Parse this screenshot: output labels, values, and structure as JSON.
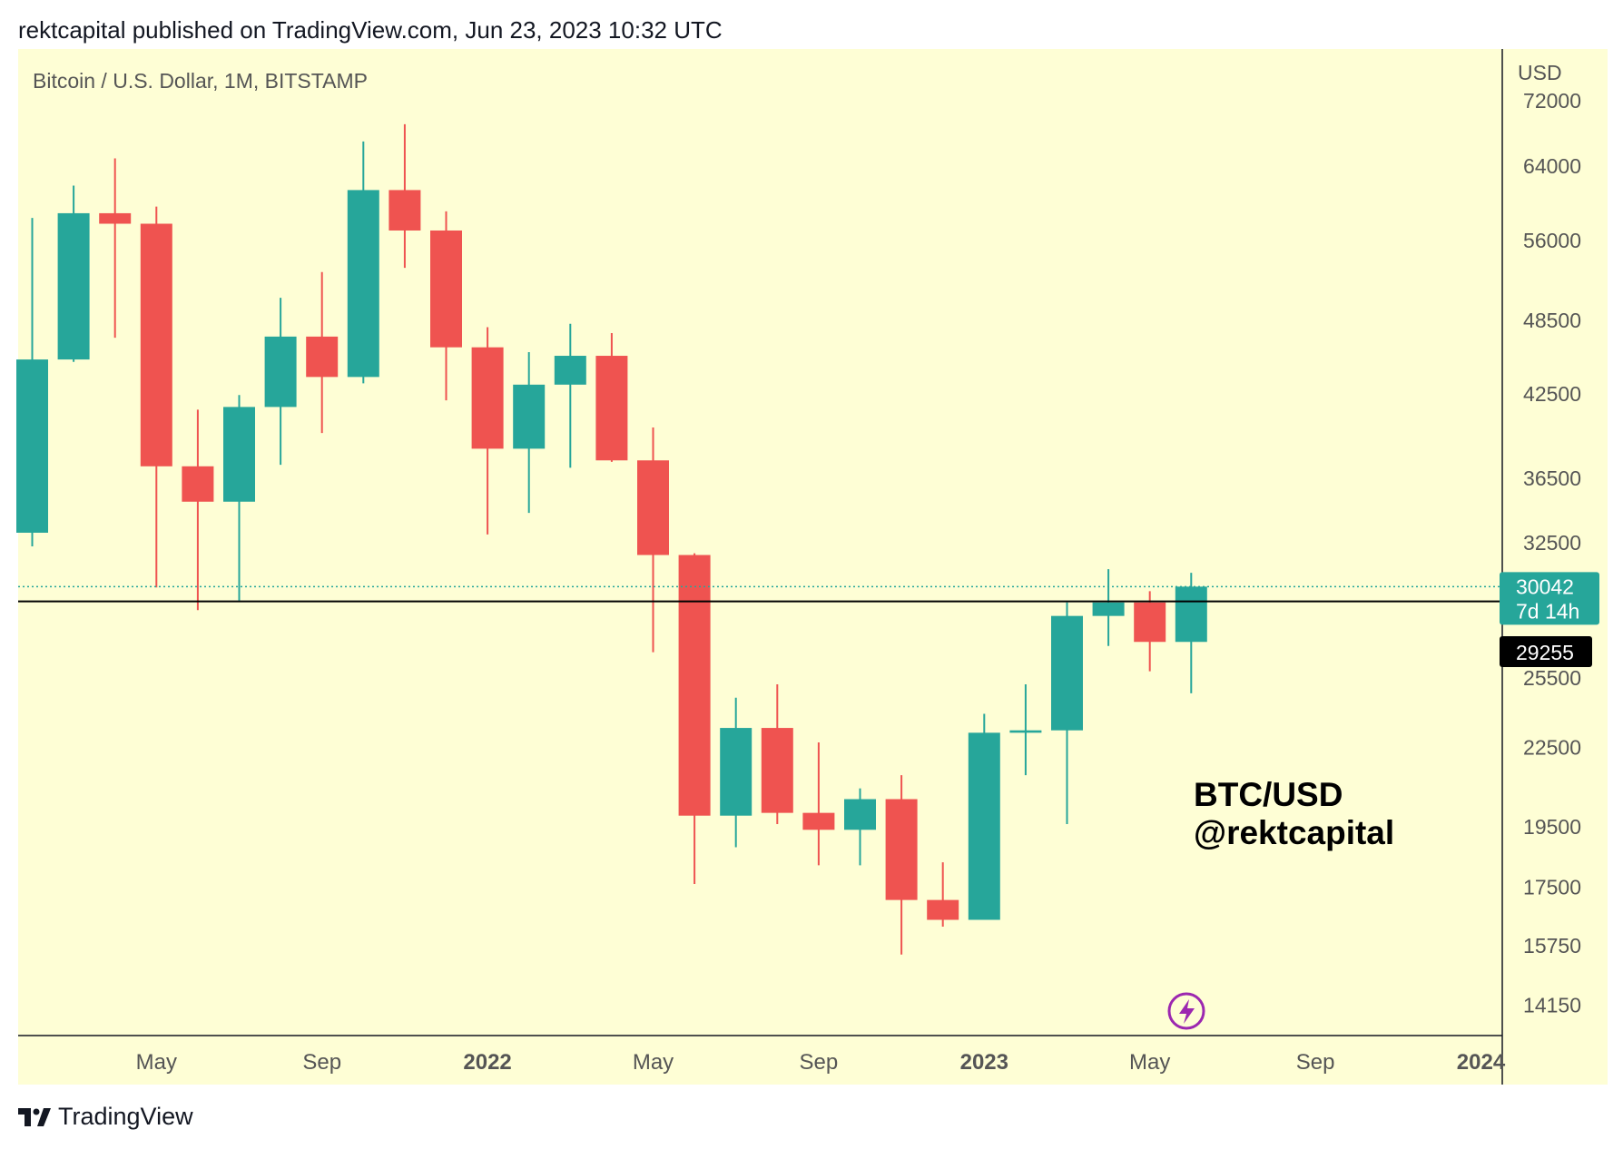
{
  "header": {
    "publish_line": "rektcapital published on TradingView.com, Jun 23, 2023 10:32 UTC"
  },
  "footer": {
    "brand": "TradingView"
  },
  "colors": {
    "background": "#fefed5",
    "up": "#26a69a",
    "down": "#ef5350",
    "axis_text": "#555555",
    "border": "#131722"
  },
  "chart_data": {
    "type": "candlestick",
    "symbol_label": "Bitcoin / U.S. Dollar, 1M, BITSTAMP",
    "currency_label": "USD",
    "y_scale": "log",
    "ylim": [
      13400,
      79000
    ],
    "y_ticks": [
      72000,
      64000,
      56000,
      48500,
      42500,
      36500,
      32500,
      25500,
      22500,
      19500,
      17500,
      15750,
      14150
    ],
    "x_ticks": [
      {
        "label": "May",
        "index": 3,
        "bold": false
      },
      {
        "label": "Sep",
        "index": 7,
        "bold": false
      },
      {
        "label": "2022",
        "index": 11,
        "bold": true
      },
      {
        "label": "May",
        "index": 15,
        "bold": false
      },
      {
        "label": "Sep",
        "index": 19,
        "bold": false
      },
      {
        "label": "2023",
        "index": 23,
        "bold": true
      },
      {
        "label": "May",
        "index": 27,
        "bold": false
      },
      {
        "label": "Sep",
        "index": 31,
        "bold": false
      },
      {
        "label": "2024",
        "index": 35,
        "bold": true
      }
    ],
    "candles": [
      {
        "month": "2021-02",
        "open": 33100,
        "high": 58300,
        "low": 32300,
        "close": 45200
      },
      {
        "month": "2021-03",
        "open": 45200,
        "high": 61800,
        "low": 45000,
        "close": 58800
      },
      {
        "month": "2021-04",
        "open": 58800,
        "high": 64900,
        "low": 47000,
        "close": 57700
      },
      {
        "month": "2021-05",
        "open": 57700,
        "high": 59500,
        "low": 30000,
        "close": 37300
      },
      {
        "month": "2021-06",
        "open": 37300,
        "high": 41300,
        "low": 28800,
        "close": 35000
      },
      {
        "month": "2021-07",
        "open": 35000,
        "high": 42400,
        "low": 29300,
        "close": 41500
      },
      {
        "month": "2021-08",
        "open": 41500,
        "high": 50500,
        "low": 37400,
        "close": 47100
      },
      {
        "month": "2021-09",
        "open": 47100,
        "high": 52900,
        "low": 39600,
        "close": 43800
      },
      {
        "month": "2021-10",
        "open": 43800,
        "high": 66900,
        "low": 43300,
        "close": 61300
      },
      {
        "month": "2021-11",
        "open": 61300,
        "high": 69000,
        "low": 53300,
        "close": 57000
      },
      {
        "month": "2021-12",
        "open": 57000,
        "high": 59000,
        "low": 42000,
        "close": 46200
      },
      {
        "month": "2022-01",
        "open": 46200,
        "high": 47900,
        "low": 33000,
        "close": 38500
      },
      {
        "month": "2022-02",
        "open": 38500,
        "high": 45800,
        "low": 34300,
        "close": 43200
      },
      {
        "month": "2022-03",
        "open": 43200,
        "high": 48200,
        "low": 37200,
        "close": 45500
      },
      {
        "month": "2022-04",
        "open": 45500,
        "high": 47400,
        "low": 37600,
        "close": 37700
      },
      {
        "month": "2022-05",
        "open": 37700,
        "high": 40000,
        "low": 26700,
        "close": 31800
      },
      {
        "month": "2022-06",
        "open": 31800,
        "high": 31900,
        "low": 17600,
        "close": 19900
      },
      {
        "month": "2022-07",
        "open": 19900,
        "high": 24600,
        "low": 18800,
        "close": 23300
      },
      {
        "month": "2022-08",
        "open": 23300,
        "high": 25200,
        "low": 19600,
        "close": 20000
      },
      {
        "month": "2022-09",
        "open": 20000,
        "high": 22700,
        "low": 18200,
        "close": 19400
      },
      {
        "month": "2022-10",
        "open": 19400,
        "high": 20900,
        "low": 18200,
        "close": 20500
      },
      {
        "month": "2022-11",
        "open": 20500,
        "high": 21400,
        "low": 15500,
        "close": 17100
      },
      {
        "month": "2022-12",
        "open": 17100,
        "high": 18300,
        "low": 16300,
        "close": 16500
      },
      {
        "month": "2023-01",
        "open": 16500,
        "high": 23900,
        "low": 16500,
        "close": 23100
      },
      {
        "month": "2023-02",
        "open": 23100,
        "high": 25200,
        "low": 21400,
        "close": 23200
      },
      {
        "month": "2023-03",
        "open": 23200,
        "high": 29200,
        "low": 19600,
        "close": 28500
      },
      {
        "month": "2023-04",
        "open": 28500,
        "high": 31000,
        "low": 27000,
        "close": 29200
      },
      {
        "month": "2023-05",
        "open": 29200,
        "high": 29800,
        "low": 25800,
        "close": 27200
      },
      {
        "month": "2023-06",
        "open": 27200,
        "high": 30800,
        "low": 24800,
        "close": 30042
      }
    ],
    "horizontal_line": {
      "value": 29255,
      "label": "29255"
    },
    "last_price": {
      "value": 30042,
      "label": "30042",
      "countdown": "7d 14h"
    },
    "annotation": {
      "line1": "BTC/USD",
      "line2": "@rektcapital"
    },
    "grid": false,
    "legend": "none"
  }
}
